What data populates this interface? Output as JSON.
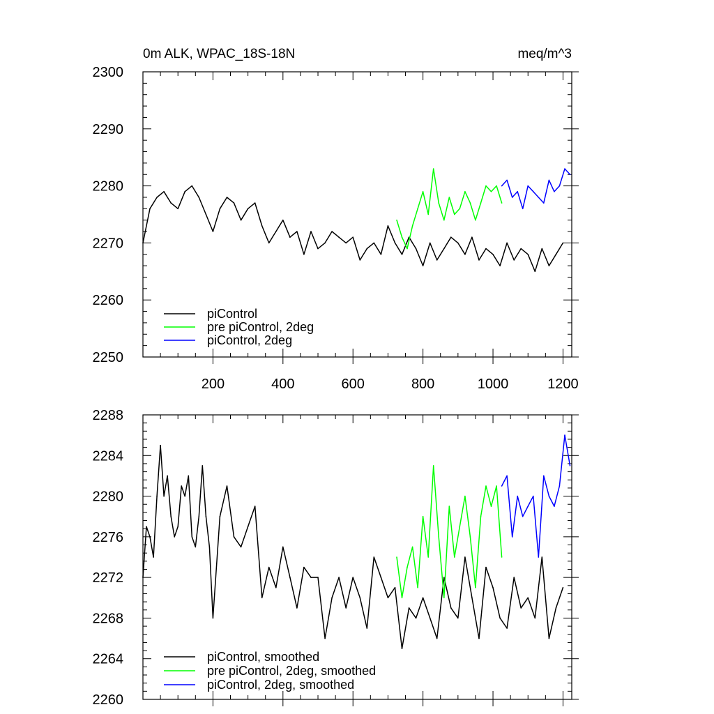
{
  "chart_data": [
    {
      "type": "line",
      "title": "0m ALK, WPAC_18S-18N",
      "units": "meq/m^3",
      "xlim": [
        0,
        1225
      ],
      "ylim": [
        2250,
        2300
      ],
      "xticks": [
        200,
        400,
        600,
        800,
        1000,
        1200
      ],
      "xtick_labels": [
        "200",
        "400",
        "600",
        "800",
        "1000",
        "1200"
      ],
      "yticks": [
        2250,
        2260,
        2270,
        2280,
        2290,
        2300
      ],
      "ytick_labels": [
        "2250",
        "2260",
        "2270",
        "2280",
        "2290",
        "2300"
      ],
      "legend_position": "bottom-left",
      "series": [
        {
          "name": "piControl",
          "color": "#000000",
          "x": [
            0,
            20,
            40,
            60,
            80,
            100,
            120,
            140,
            160,
            180,
            200,
            220,
            240,
            260,
            280,
            300,
            320,
            340,
            360,
            380,
            400,
            420,
            440,
            460,
            480,
            500,
            520,
            540,
            560,
            580,
            600,
            620,
            640,
            660,
            680,
            700,
            720,
            740,
            760,
            780,
            800,
            820,
            840,
            860,
            880,
            900,
            920,
            940,
            960,
            980,
            1000,
            1020,
            1040,
            1060,
            1080,
            1100,
            1120,
            1140,
            1160,
            1180,
            1200
          ],
          "y": [
            2270,
            2276,
            2278,
            2279,
            2277,
            2276,
            2279,
            2280,
            2278,
            2275,
            2272,
            2276,
            2278,
            2277,
            2274,
            2276,
            2277,
            2273,
            2270,
            2272,
            2274,
            2271,
            2272,
            2268,
            2272,
            2269,
            2270,
            2272,
            2271,
            2270,
            2271,
            2267,
            2269,
            2270,
            2268,
            2273,
            2270,
            2268,
            2271,
            2269,
            2266,
            2270,
            2267,
            2269,
            2271,
            2270,
            2268,
            2271,
            2267,
            2269,
            2268,
            2266,
            2270,
            2267,
            2269,
            2268,
            2265,
            2269,
            2266,
            2268,
            2270
          ]
        },
        {
          "name": "pre piControl, 2deg",
          "color": "#00ff00",
          "x": [
            725,
            740,
            755,
            770,
            785,
            800,
            815,
            830,
            845,
            860,
            875,
            890,
            905,
            920,
            935,
            950,
            965,
            980,
            995,
            1010,
            1025
          ],
          "y": [
            2274,
            2271,
            2269,
            2273,
            2276,
            2279,
            2275,
            2283,
            2277,
            2274,
            2278,
            2275,
            2276,
            2279,
            2277,
            2274,
            2277,
            2280,
            2279,
            2280,
            2277
          ]
        },
        {
          "name": "piControl, 2deg",
          "color": "#0000ff",
          "x": [
            1025,
            1040,
            1055,
            1070,
            1085,
            1100,
            1115,
            1130,
            1145,
            1160,
            1175,
            1190,
            1205,
            1220
          ],
          "y": [
            2280,
            2281,
            2278,
            2279,
            2276,
            2280,
            2279,
            2278,
            2277,
            2281,
            2279,
            2280,
            2283,
            2282
          ]
        }
      ]
    },
    {
      "type": "line",
      "xlim": [
        0,
        1225
      ],
      "ylim": [
        2260,
        2288
      ],
      "xticks": [
        200,
        400,
        600,
        800,
        1000,
        1200
      ],
      "yticks": [
        2260,
        2264,
        2268,
        2272,
        2276,
        2280,
        2284,
        2288
      ],
      "ytick_labels": [
        "2260",
        "2264",
        "2268",
        "2272",
        "2276",
        "2280",
        "2284",
        "2288"
      ],
      "legend_position": "bottom-left",
      "series": [
        {
          "name": "piControl, smoothed",
          "color": "#000000",
          "x": [
            0,
            10,
            20,
            30,
            40,
            50,
            60,
            70,
            80,
            90,
            100,
            110,
            120,
            130,
            140,
            150,
            160,
            170,
            180,
            190,
            200,
            220,
            240,
            260,
            280,
            300,
            320,
            340,
            360,
            380,
            400,
            420,
            440,
            460,
            480,
            500,
            520,
            540,
            560,
            580,
            600,
            620,
            640,
            660,
            680,
            700,
            720,
            740,
            760,
            780,
            800,
            820,
            840,
            860,
            880,
            900,
            920,
            940,
            960,
            980,
            1000,
            1020,
            1040,
            1060,
            1080,
            1100,
            1120,
            1140,
            1160,
            1180,
            1200
          ],
          "y": [
            2272,
            2277,
            2276,
            2274,
            2280,
            2285,
            2280,
            2282,
            2278,
            2276,
            2277,
            2281,
            2280,
            2282,
            2276,
            2275,
            2278,
            2283,
            2278,
            2275,
            2268,
            2278,
            2281,
            2276,
            2275,
            2277,
            2279,
            2270,
            2273,
            2271,
            2275,
            2272,
            2269,
            2273,
            2272,
            2272,
            2266,
            2270,
            2272,
            2269,
            2272,
            2270,
            2267,
            2274,
            2272,
            2270,
            2271,
            2265,
            2269,
            2268,
            2270,
            2268,
            2266,
            2272,
            2269,
            2268,
            2274,
            2270,
            2266,
            2273,
            2271,
            2268,
            2267,
            2272,
            2269,
            2270,
            2268,
            2274,
            2266,
            2269,
            2271
          ]
        },
        {
          "name": "pre piControl, 2deg, smoothed",
          "color": "#00ff00",
          "x": [
            725,
            740,
            755,
            770,
            785,
            800,
            815,
            830,
            845,
            860,
            875,
            890,
            905,
            920,
            935,
            950,
            965,
            980,
            995,
            1010,
            1025
          ],
          "y": [
            2274,
            2270,
            2273,
            2275,
            2271,
            2278,
            2274,
            2283,
            2276,
            2270,
            2279,
            2274,
            2277,
            2280,
            2276,
            2271,
            2278,
            2281,
            2279,
            2281,
            2274
          ]
        },
        {
          "name": "piControl, 2deg, smoothed",
          "color": "#0000ff",
          "x": [
            1025,
            1040,
            1055,
            1070,
            1085,
            1100,
            1115,
            1130,
            1145,
            1160,
            1175,
            1190,
            1205,
            1220
          ],
          "y": [
            2281,
            2282,
            2276,
            2280,
            2278,
            2279,
            2280,
            2274,
            2282,
            2280,
            2279,
            2281,
            2286,
            2283
          ]
        }
      ]
    }
  ]
}
